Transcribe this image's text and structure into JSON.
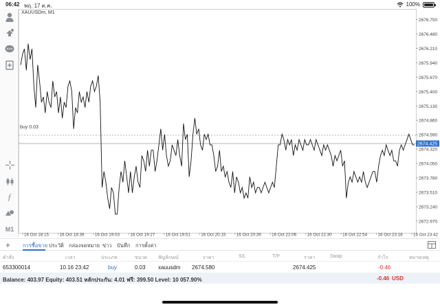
{
  "status_bar": {
    "time": "06:42",
    "date": "พฤ. 17 ต.ค.",
    "battery": "100%"
  },
  "chart": {
    "symbol_label": "XAUUSDm, M1",
    "buy_label": "buy 0.03",
    "current_price": "2674.425"
  },
  "chart_data": {
    "type": "line",
    "title": "XAUUSDm, M1",
    "price_ticks": [
      "2676.750",
      "2676.480",
      "2676.210",
      "2675.940",
      "2675.670",
      "2675.400",
      "2675.130",
      "2674.860",
      "2674.590",
      "2674.320",
      "2674.050",
      "2673.780",
      "2673.510",
      "2673.240",
      "2672.970"
    ],
    "time_ticks": [
      "16 Oct 18:15",
      "16 Oct 18:39",
      "16 Oct 19:03",
      "16 Oct 19:27",
      "16 Oct 19:51",
      "16 Oct 20:15",
      "16 Oct 20:39",
      "16 Oct 22:06",
      "16 Oct 22:30",
      "16 Oct 22:54",
      "16 Oct 23:18",
      "16 Oct 23:42"
    ],
    "ylim": [
      2672.75,
      2676.95
    ],
    "order_line": {
      "label": "buy 0.03",
      "price": 2674.58
    },
    "bid_line": {
      "price": 2674.425
    },
    "values": [
      2675.9,
      2676.1,
      2676.2,
      2675.8,
      2676.3,
      2676.0,
      2676.2,
      2675.5,
      2675.1,
      2675.9,
      2675.6,
      2675.2,
      2675.3,
      2675.0,
      2675.4,
      2675.2,
      2675.1,
      2675.6,
      2675.3,
      2675.4,
      2675.0,
      2675.3,
      2674.9,
      2675.2,
      2675.1,
      2675.5,
      2675.6,
      2675.4,
      2674.7,
      2675.1,
      2675.0,
      2675.4,
      2675.2,
      2675.3,
      2675.1,
      2675.4,
      2675.2,
      2675.5,
      2675.6,
      2675.4,
      2675.5,
      2675.7,
      2675.2,
      2673.6,
      2673.9,
      2673.7,
      2673.4,
      2673.2,
      2673.6,
      2673.5,
      2673.1,
      2673.1,
      2673.6,
      2673.9,
      2673.7,
      2674.1,
      2673.8,
      2673.5,
      2673.9,
      2673.5,
      2673.8,
      2674.0,
      2673.7,
      2673.6,
      2674.2,
      2674.1,
      2673.9,
      2674.3,
      2674.0,
      2674.3,
      2674.3,
      2673.9,
      2674.1,
      2674.4,
      2674.7,
      2674.3,
      2674.6,
      2674.2,
      2674.0,
      2674.1,
      2674.4,
      2674.3,
      2674.2,
      2674.5,
      2674.2,
      2674.0,
      2674.8,
      2674.5,
      2674.6,
      2673.8,
      2674.1,
      2674.6,
      2674.9,
      2674.6,
      2674.7,
      2674.4,
      2674.3,
      2674.6,
      2674.5,
      2674.6,
      2674.4,
      2674.4,
      2674.2,
      2673.9,
      2674.0,
      2674.3,
      2673.9,
      2674.0,
      2673.8,
      2673.9,
      2673.7,
      2673.6,
      2673.9,
      2673.5,
      2673.8,
      2673.7,
      2673.5,
      2673.6,
      2673.4,
      2673.5,
      2673.4,
      2673.8,
      2673.6,
      2673.7,
      2673.5,
      2673.6,
      2673.6,
      2673.5,
      2673.6,
      2673.7,
      2673.6,
      2673.5,
      2673.6,
      2673.7,
      2673.6,
      2674.0,
      2674.4,
      2674.4,
      2674.6,
      2674.5,
      2674.3,
      2674.5,
      2674.4,
      2674.5,
      2674.2,
      2674.4,
      2674.3,
      2674.5,
      2674.4,
      2674.3,
      2674.5,
      2674.4,
      2674.4,
      2674.5,
      2674.4,
      2674.3,
      2674.5,
      2674.4,
      2674.3,
      2674.2,
      2674.4,
      2674.3,
      2674.4,
      2674.3,
      2674.2,
      2674.0,
      2674.2,
      2674.1,
      2674.2,
      2674.3,
      2674.0,
      2674.1,
      2673.4,
      2673.7,
      2673.8,
      2673.7,
      2673.9,
      2673.8,
      2673.7,
      2673.8,
      2673.7,
      2673.9,
      2673.7,
      2673.6,
      2673.7,
      2673.8,
      2673.9,
      2673.9,
      2673.7,
      2674.0,
      2674.2,
      2674.3,
      2674.2,
      2674.4,
      2674.3,
      2674.2,
      2674.3,
      2674.1,
      2674.1,
      2674.0,
      2674.3,
      2674.4,
      2674.3,
      2674.4,
      2674.5,
      2674.6,
      2674.5,
      2674.4,
      2674.4
    ]
  },
  "tabs": {
    "items": [
      "การซื้อขาย",
      "ประวัติ",
      "กล่องจดหมาย",
      "ข่าว",
      "บันทึก",
      "การตั้งค่า"
    ],
    "active": "การซื้อขาย"
  },
  "table": {
    "headers": [
      "คำสั่ง",
      "เวลา",
      "ประเภท",
      "ขนาด",
      "สัญลักษณ์",
      "ราคา",
      "S/L",
      "T/P",
      "ราคา",
      "Swap",
      "กำไร",
      "หมายเหตุ"
    ],
    "rows": [
      {
        "order": "653300014",
        "time": "10.16 23:42",
        "type": "buy",
        "size": "0.03",
        "symbol": "xauusdm",
        "price": "2674.580",
        "sl": "",
        "tp": "",
        "current": "2674.425",
        "swap": "",
        "profit": "-0.46",
        "note": ""
      }
    ]
  },
  "balance": {
    "text": "Balance: 403.97  Equity: 403.51  หลักประกัน: 4.01  ฟรี: 399.50  Level: 10 057.90%",
    "pl": "-0.46",
    "currency": "USD"
  },
  "colors": {
    "accent": "#2c6fcf",
    "loss": "#e03131",
    "bid_badge": "#2c6fcf"
  }
}
